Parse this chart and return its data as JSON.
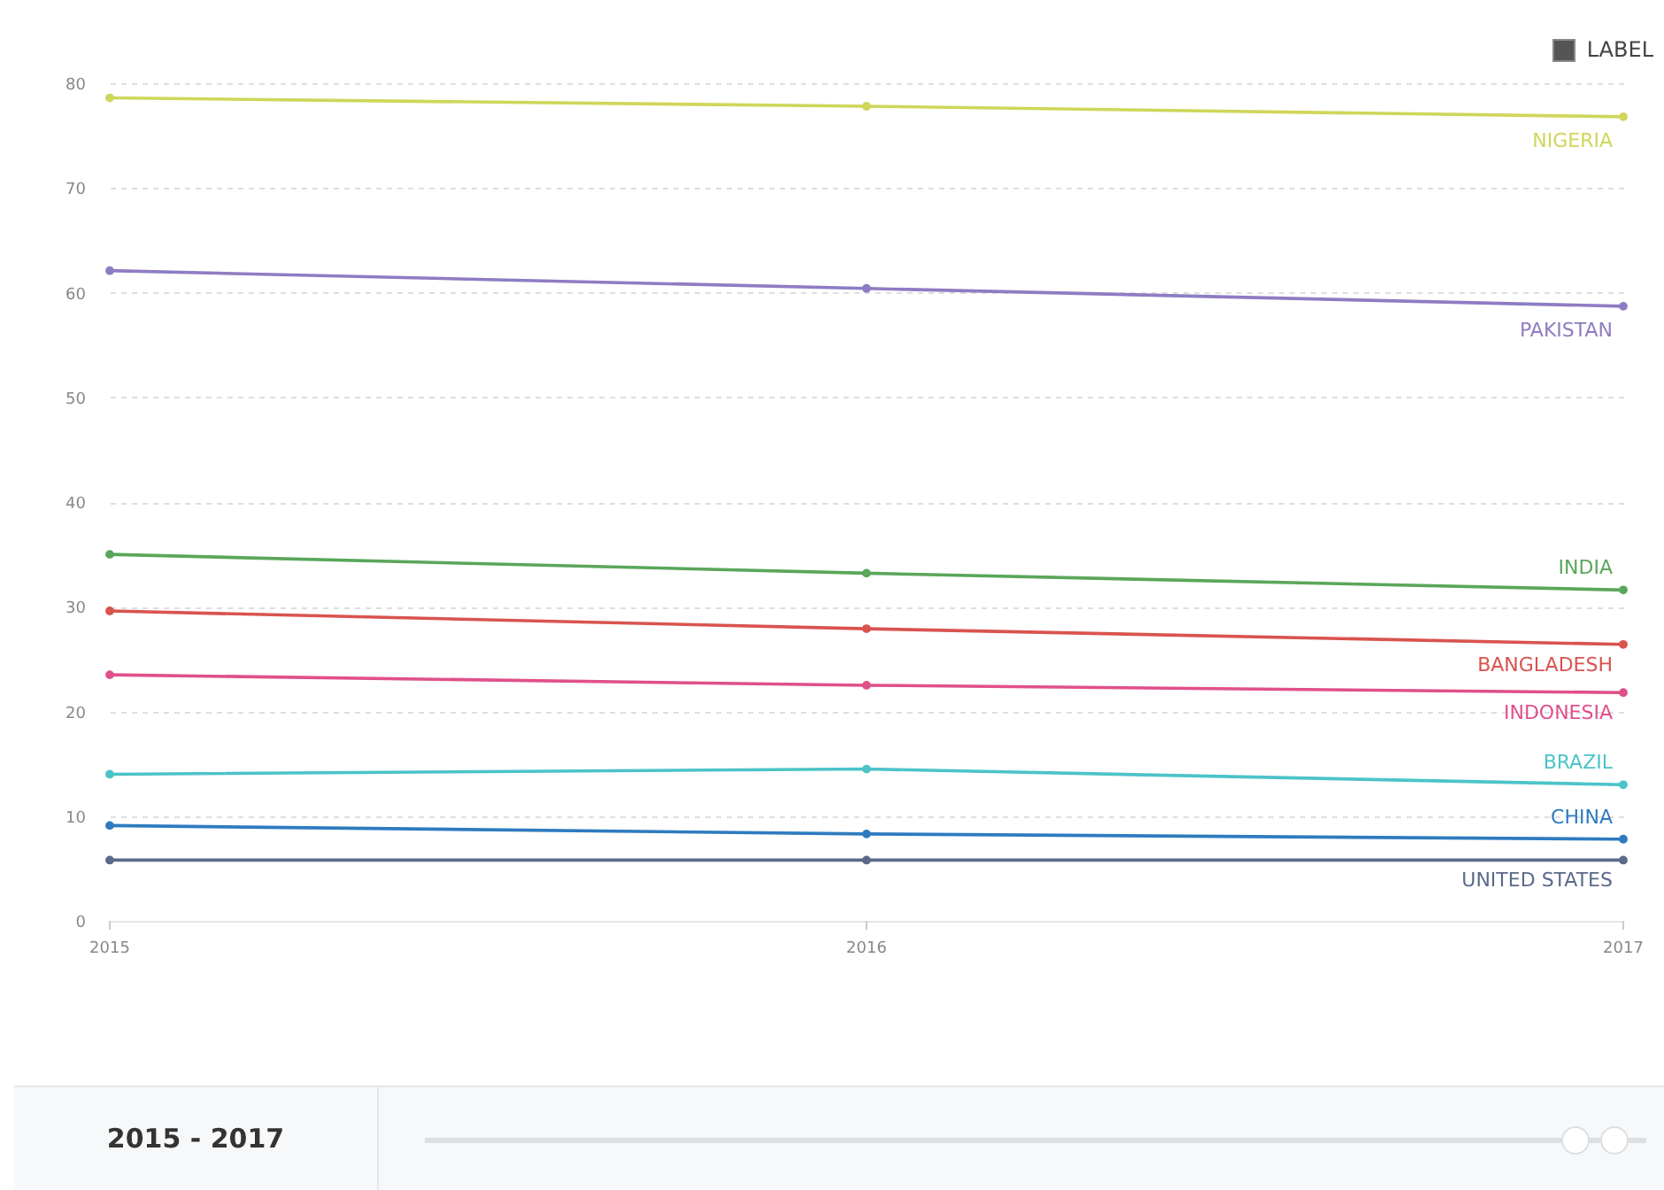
{
  "chart_data": {
    "type": "line",
    "x": [
      2015,
      2016,
      2017
    ],
    "xlim": [
      2015,
      2017
    ],
    "xticks": [
      2015,
      2016,
      2017
    ],
    "ylim": [
      0,
      80
    ],
    "yticks": [
      0,
      10,
      20,
      30,
      40,
      50,
      60,
      70,
      80
    ],
    "grid": "y",
    "marker": "circle",
    "legend": "right",
    "annotations": [
      "LABEL",
      "2015 - 2017"
    ],
    "series": [
      {
        "name": "NIGERIA",
        "color": "#cfd65a",
        "values": [
          78.6,
          77.8,
          76.8
        ]
      },
      {
        "name": "PAKISTAN",
        "color": "#8e7cc3",
        "values": [
          62.1,
          60.4,
          58.7
        ]
      },
      {
        "name": "INDIA",
        "color": "#5aa65a",
        "values": [
          35.0,
          33.2,
          31.6
        ]
      },
      {
        "name": "BANGLADESH",
        "color": "#d9534f",
        "values": [
          29.6,
          27.9,
          26.4
        ]
      },
      {
        "name": "INDONESIA",
        "color": "#e0508a",
        "values": [
          23.5,
          22.5,
          21.8
        ]
      },
      {
        "name": "BRAZIL",
        "color": "#4cc3c8",
        "values": [
          14.0,
          14.5,
          13.0
        ]
      },
      {
        "name": "CHINA",
        "color": "#2e7bbf",
        "values": [
          9.1,
          8.3,
          7.8
        ]
      },
      {
        "name": "UNITED STATES",
        "color": "#5b6a8a",
        "values": [
          5.8,
          5.8,
          5.8
        ]
      }
    ]
  }
}
